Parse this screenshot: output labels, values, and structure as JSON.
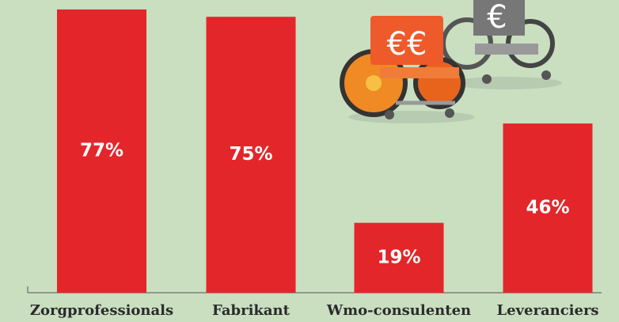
{
  "chart_data": {
    "type": "bar",
    "categories": [
      "Zorgprofessionals",
      "Fabrikant",
      "Wmo-consulenten",
      "Leveranciers"
    ],
    "values": [
      77,
      75,
      19,
      46
    ],
    "value_labels": [
      "77%",
      "75%",
      "19%",
      "46%"
    ],
    "color": "#e3262a",
    "annotations": [
      "€€",
      "€"
    ]
  }
}
